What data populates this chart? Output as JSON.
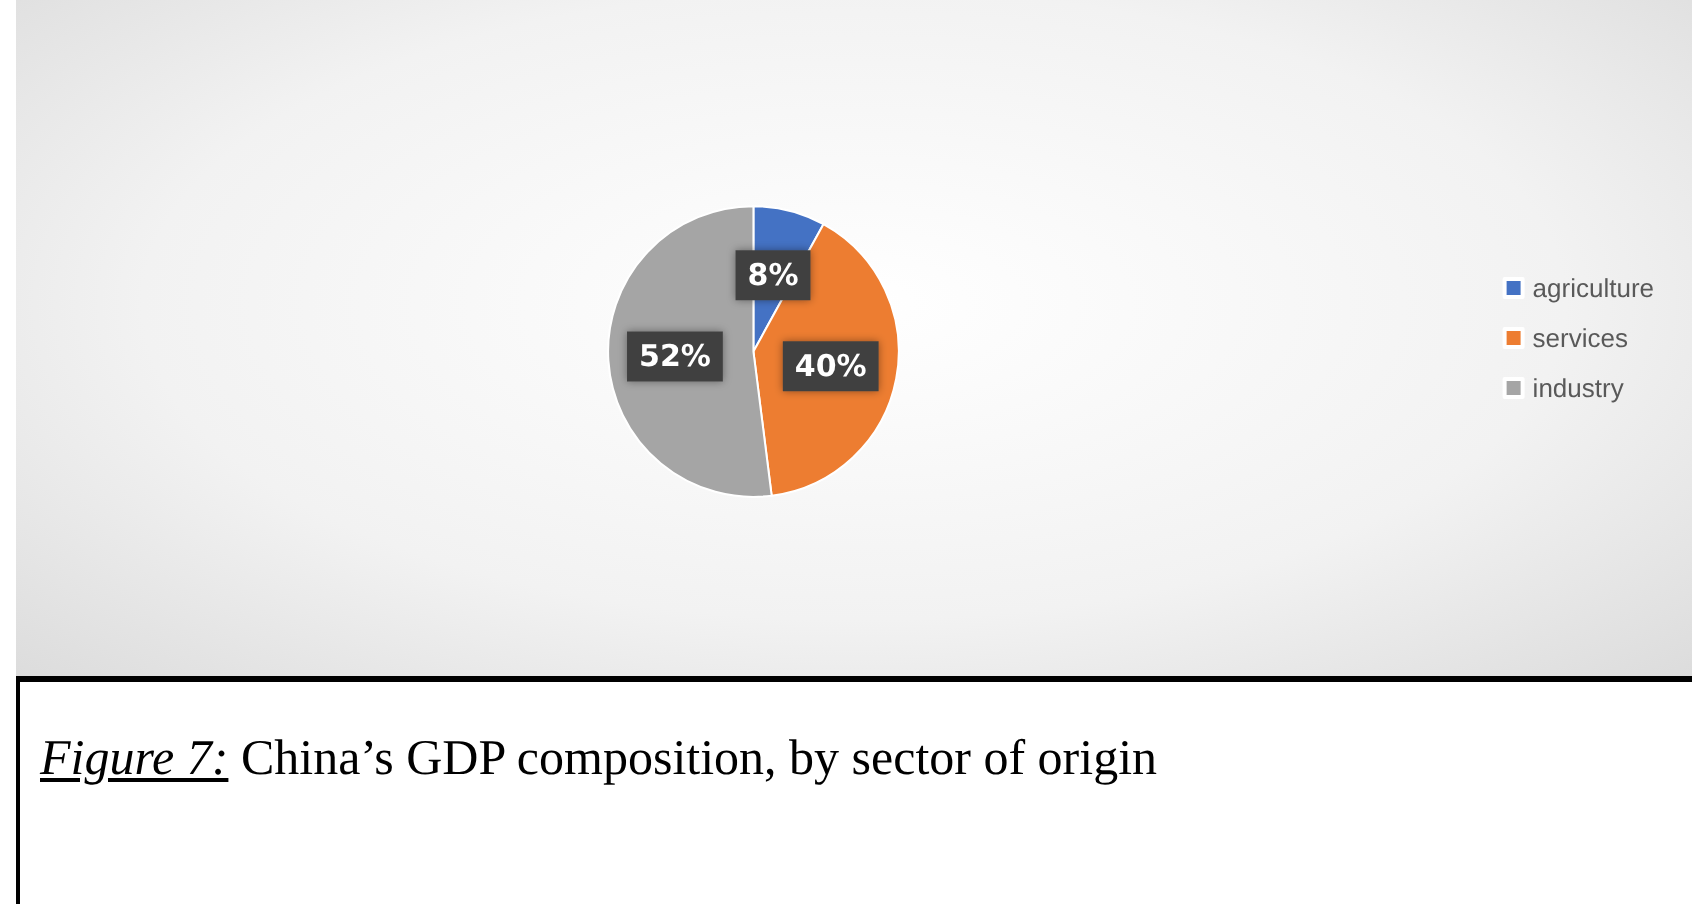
{
  "chart_data": {
    "type": "pie",
    "categories": [
      "agriculture",
      "services",
      "industry"
    ],
    "values": [
      8,
      40,
      52
    ],
    "value_labels": [
      "8%",
      "40%",
      "52%"
    ],
    "colors": [
      "#4472c4",
      "#ed7d31",
      "#a5a5a5"
    ],
    "legend": "right",
    "annotations": [
      "Figure 7:",
      "China’s GDP composition, by sector of origin"
    ]
  }
}
